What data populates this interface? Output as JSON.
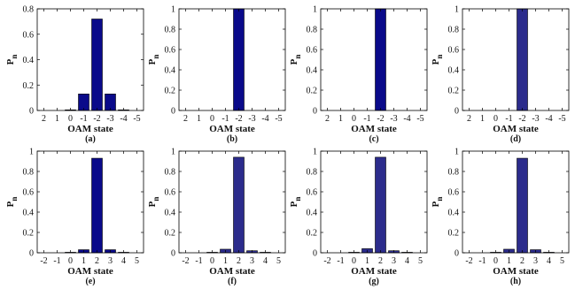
{
  "chart_data": [
    {
      "type": "bar",
      "panel": "(a)",
      "categories": [
        "2",
        "1",
        "0",
        "-1",
        "-2",
        "-3",
        "-4",
        "-5"
      ],
      "values": [
        0,
        0,
        0.005,
        0.13,
        0.72,
        0.13,
        0.005,
        0
      ],
      "ylim": [
        0,
        0.8
      ],
      "yticks": [
        "0",
        "0.2",
        "0.4",
        "0.6",
        "0.8"
      ],
      "xlabel": "OAM state",
      "ylabel": "P",
      "ylabel_sub": "n",
      "bar_color": "#0a0a8a"
    },
    {
      "type": "bar",
      "panel": "(b)",
      "categories": [
        "2",
        "1",
        "0",
        "-1",
        "-2",
        "-3",
        "-4",
        "-5"
      ],
      "values": [
        0,
        0,
        0,
        0,
        1.0,
        0,
        0,
        0
      ],
      "ylim": [
        0,
        1
      ],
      "yticks": [
        "0",
        "0.2",
        "0.4",
        "0.6",
        "0.8",
        "1"
      ],
      "xlabel": "OAM state",
      "ylabel": "P",
      "ylabel_sub": "n",
      "bar_color": "#0a0a8a"
    },
    {
      "type": "bar",
      "panel": "(c)",
      "categories": [
        "2",
        "1",
        "0",
        "-1",
        "-2",
        "-3",
        "-4",
        "-5"
      ],
      "values": [
        0,
        0,
        0,
        0,
        1.0,
        0,
        0,
        0
      ],
      "ylim": [
        0,
        1
      ],
      "yticks": [
        "0",
        "0.2",
        "0.4",
        "0.6",
        "0.8",
        "1"
      ],
      "xlabel": "OAM state",
      "ylabel": "P",
      "ylabel_sub": "n",
      "bar_color": "#0a0a8a"
    },
    {
      "type": "bar",
      "panel": "(d)",
      "categories": [
        "2",
        "1",
        "0",
        "-1",
        "-2",
        "-3",
        "-4",
        "-5"
      ],
      "values": [
        0,
        0,
        0,
        0,
        1.0,
        0,
        0,
        0
      ],
      "ylim": [
        0,
        1
      ],
      "yticks": [
        "0",
        "0.2",
        "0.4",
        "0.6",
        "0.8",
        "1"
      ],
      "xlabel": "OAM state",
      "ylabel": "P",
      "ylabel_sub": "n",
      "bar_color": "#2c2c8c"
    },
    {
      "type": "bar",
      "panel": "(e)",
      "categories": [
        "-2",
        "-1",
        "0",
        "1",
        "2",
        "3",
        "4",
        "5"
      ],
      "values": [
        0,
        0,
        0.005,
        0.03,
        0.93,
        0.03,
        0.005,
        0
      ],
      "ylim": [
        0,
        1
      ],
      "yticks": [
        "0",
        "0.2",
        "0.4",
        "0.6",
        "0.8",
        "1"
      ],
      "xlabel": "OAM state",
      "ylabel": "P",
      "ylabel_sub": "n",
      "bar_color": "#0a0a8a"
    },
    {
      "type": "bar",
      "panel": "(f)",
      "categories": [
        "-2",
        "-1",
        "0",
        "1",
        "2",
        "3",
        "4",
        "5"
      ],
      "values": [
        0,
        0,
        0.005,
        0.035,
        0.94,
        0.02,
        0.005,
        0
      ],
      "ylim": [
        0,
        1
      ],
      "yticks": [
        "0",
        "0.2",
        "0.4",
        "0.6",
        "0.8",
        "1"
      ],
      "xlabel": "OAM state",
      "ylabel": "P",
      "ylabel_sub": "n",
      "bar_color": "#2c2c8c"
    },
    {
      "type": "bar",
      "panel": "(g)",
      "categories": [
        "-2",
        "-1",
        "0",
        "1",
        "2",
        "3",
        "4",
        "5"
      ],
      "values": [
        0,
        0,
        0.005,
        0.04,
        0.94,
        0.02,
        0.005,
        0
      ],
      "ylim": [
        0,
        1
      ],
      "yticks": [
        "0",
        "0.2",
        "0.4",
        "0.6",
        "0.8",
        "1"
      ],
      "xlabel": "OAM state",
      "ylabel": "P",
      "ylabel_sub": "n",
      "bar_color": "#2c2c8c"
    },
    {
      "type": "bar",
      "panel": "(h)",
      "categories": [
        "-2",
        "-1",
        "0",
        "1",
        "2",
        "3",
        "4",
        "5"
      ],
      "values": [
        0,
        0,
        0.005,
        0.035,
        0.93,
        0.03,
        0.005,
        0
      ],
      "ylim": [
        0,
        1
      ],
      "yticks": [
        "0",
        "0.2",
        "0.4",
        "0.6",
        "0.8",
        "1"
      ],
      "xlabel": "OAM state",
      "ylabel": "P",
      "ylabel_sub": "n",
      "bar_color": "#2c2c8c"
    }
  ]
}
